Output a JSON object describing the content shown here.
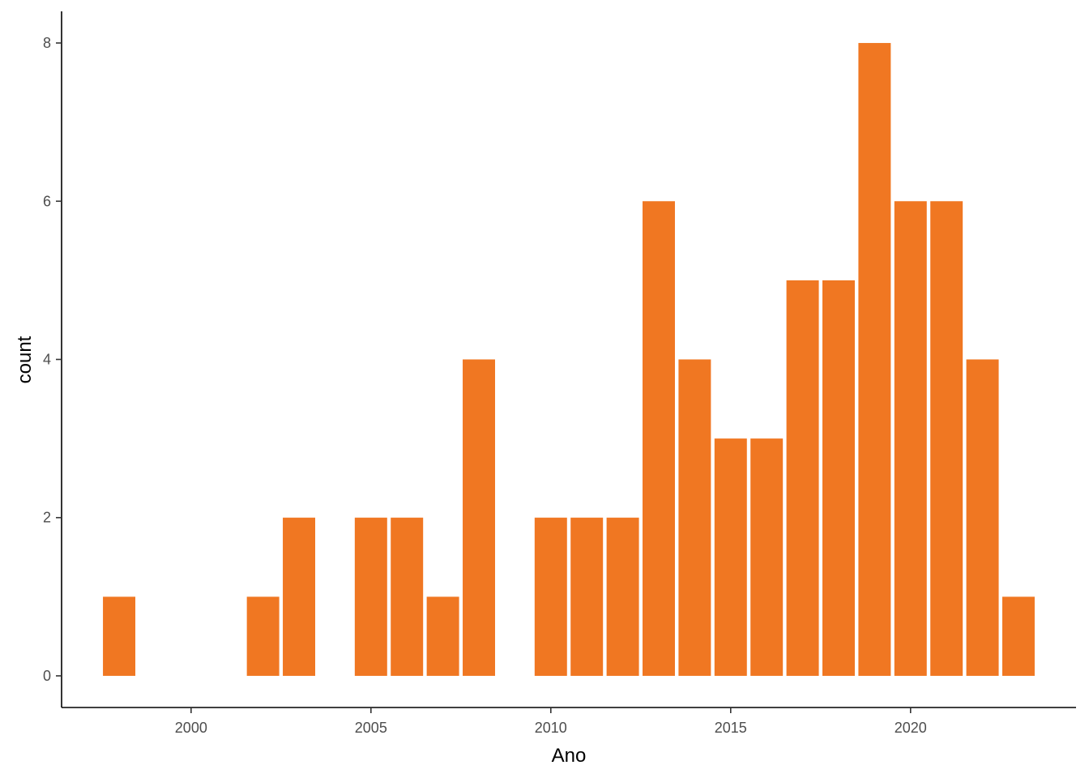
{
  "chart_data": {
    "type": "bar",
    "xlabel": "Ano",
    "ylabel": "count",
    "x": [
      1998,
      2002,
      2003,
      2005,
      2006,
      2007,
      2008,
      2010,
      2011,
      2012,
      2013,
      2014,
      2015,
      2016,
      2017,
      2018,
      2019,
      2020,
      2021,
      2022,
      2023
    ],
    "values": [
      1,
      1,
      2,
      2,
      2,
      1,
      4,
      2,
      2,
      2,
      6,
      4,
      3,
      3,
      5,
      5,
      8,
      6,
      6,
      4,
      1
    ],
    "xlim": [
      1996.4,
      2024.6
    ],
    "ylim": [
      -0.4,
      8.4
    ],
    "xticks": [
      "2000",
      "2005",
      "2010",
      "2015",
      "2020"
    ],
    "yticks": [
      "0",
      "2",
      "4",
      "6",
      "8"
    ],
    "grid": false,
    "legend": "none",
    "bar_color": "#F07722"
  }
}
